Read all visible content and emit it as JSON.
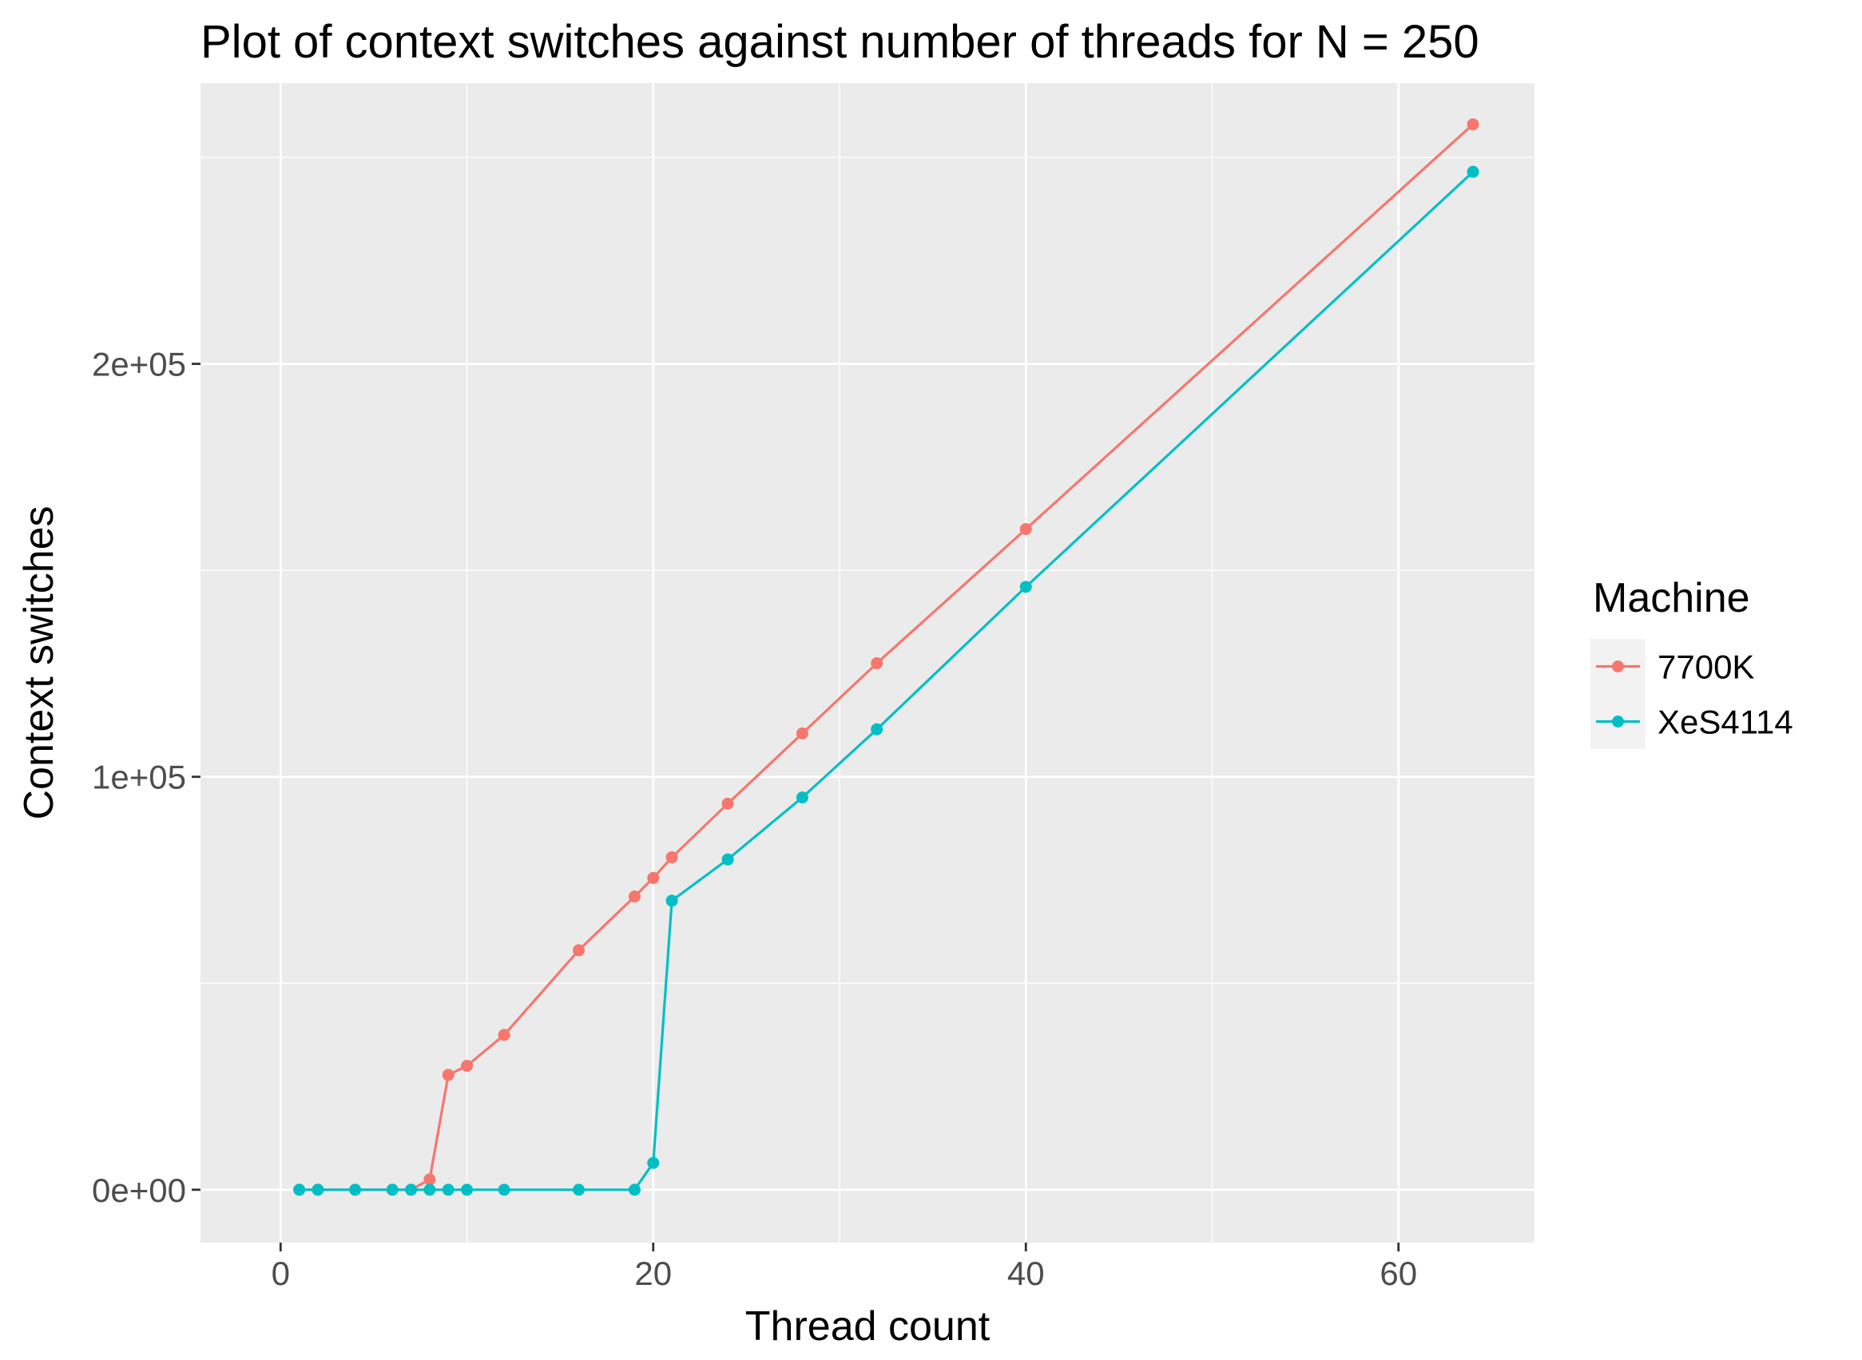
{
  "chart_data": {
    "type": "line",
    "title": "Plot of context switches against number of threads for N = 250",
    "xlabel": "Thread count",
    "ylabel": "Context switches",
    "xlim": [
      -4.3,
      67.3
    ],
    "ylim": [
      -12800,
      268000
    ],
    "x_ticks": [
      0,
      20,
      40,
      60
    ],
    "x_tick_labels": [
      "0",
      "20",
      "40",
      "60"
    ],
    "y_ticks": [
      0,
      100000,
      200000
    ],
    "y_tick_labels": [
      "0e+00",
      "1e+05",
      "2e+05"
    ],
    "x_minor": [
      10,
      30,
      50
    ],
    "y_minor": [
      50000,
      150000,
      250000
    ],
    "grid": true,
    "legend": {
      "title": "Machine",
      "position": "right"
    },
    "series": [
      {
        "name": "7700K",
        "color": "#F8766D",
        "x": [
          1,
          2,
          4,
          6,
          7,
          8,
          9,
          10,
          12,
          16,
          19,
          20,
          21,
          24,
          28,
          32,
          40,
          64
        ],
        "y": [
          0,
          0,
          0,
          0,
          0,
          2500,
          27800,
          30000,
          37500,
          58000,
          71000,
          75500,
          80500,
          93500,
          110500,
          127500,
          160000,
          258000
        ]
      },
      {
        "name": "XeS4114",
        "color": "#00BFC4",
        "x": [
          1,
          2,
          4,
          6,
          7,
          8,
          9,
          10,
          12,
          16,
          19,
          20,
          21,
          24,
          28,
          32,
          40,
          64
        ],
        "y": [
          0,
          0,
          0,
          0,
          0,
          0,
          0,
          0,
          0,
          0,
          0,
          6500,
          70000,
          80000,
          95000,
          111500,
          146000,
          246500
        ]
      }
    ]
  }
}
